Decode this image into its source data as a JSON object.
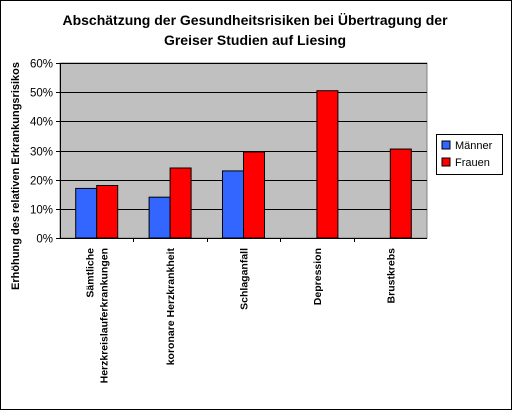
{
  "chart_data": {
    "type": "bar",
    "title": [
      "Abschätzung der Gesundheitsrisiken bei Übertragung der",
      "Greiser Studien auf Liesing"
    ],
    "ylabel": "Erhöhung des relativen Erkrankungsrisikos",
    "xlabel": "",
    "ylim": [
      0,
      60
    ],
    "yticks": [
      0,
      10,
      20,
      30,
      40,
      50,
      60
    ],
    "ytick_suffix": "%",
    "grid": true,
    "legend_position": "right",
    "plot_background": "#c0c0c0",
    "categories": [
      [
        "Sämtliche",
        "Herzkreislauferkrankungen"
      ],
      [
        "koronare Herzkrankheit"
      ],
      [
        "Schlaganfall"
      ],
      [
        "Depression"
      ],
      [
        "Brustkrebs"
      ]
    ],
    "series": [
      {
        "name": "Männer",
        "color": "#3366ff",
        "values": [
          17,
          14,
          23,
          null,
          null
        ]
      },
      {
        "name": "Frauen",
        "color": "#ff0000",
        "values": [
          18,
          24,
          29.5,
          50.5,
          30.5
        ]
      }
    ]
  }
}
